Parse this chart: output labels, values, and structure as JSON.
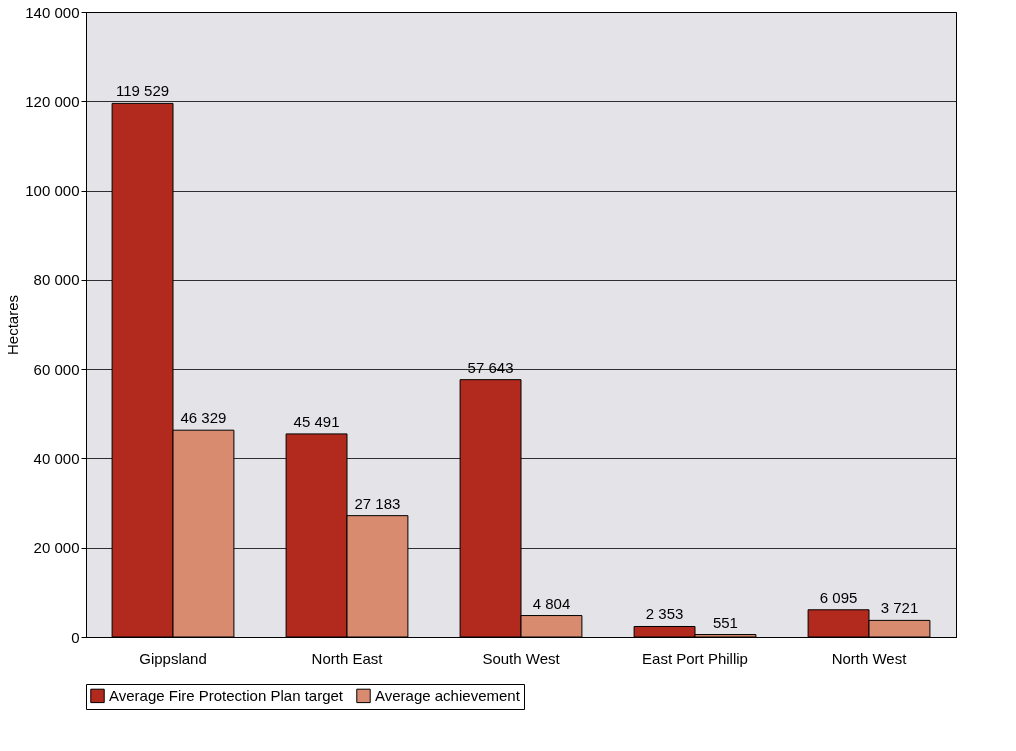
{
  "chart_data": {
    "type": "bar",
    "ylabel": "Hectares",
    "categories": [
      "Gippsland",
      "North East",
      "South West",
      "East Port Phillip",
      "North West"
    ],
    "series": [
      {
        "name": "Average Fire Protection Plan target",
        "color": "#b22a1e",
        "values": [
          119529,
          45491,
          57643,
          2353,
          6095
        ],
        "value_labels": [
          "119 529",
          "45 491",
          "57 643",
          "2 353",
          "6 095"
        ]
      },
      {
        "name": "Average achievement",
        "color": "#d98b70",
        "values": [
          46329,
          27183,
          4804,
          551,
          3721
        ],
        "value_labels": [
          "46 329",
          "27 183",
          "4 804",
          "551",
          "3 721"
        ]
      }
    ],
    "ylim": [
      0,
      140000
    ],
    "yticks": [
      0,
      {
        "value": 20000,
        "label": "20 000"
      },
      {
        "value": 40000,
        "label": "40 000"
      },
      {
        "value": 60000,
        "label": "60 000"
      },
      {
        "value": 80000,
        "label": "80 000"
      },
      {
        "value": 100000,
        "label": "100 000"
      },
      {
        "value": 120000,
        "label": "120 000"
      },
      {
        "value": 140000,
        "label": "140 000"
      }
    ],
    "grid": "y",
    "legend": "bottom"
  }
}
